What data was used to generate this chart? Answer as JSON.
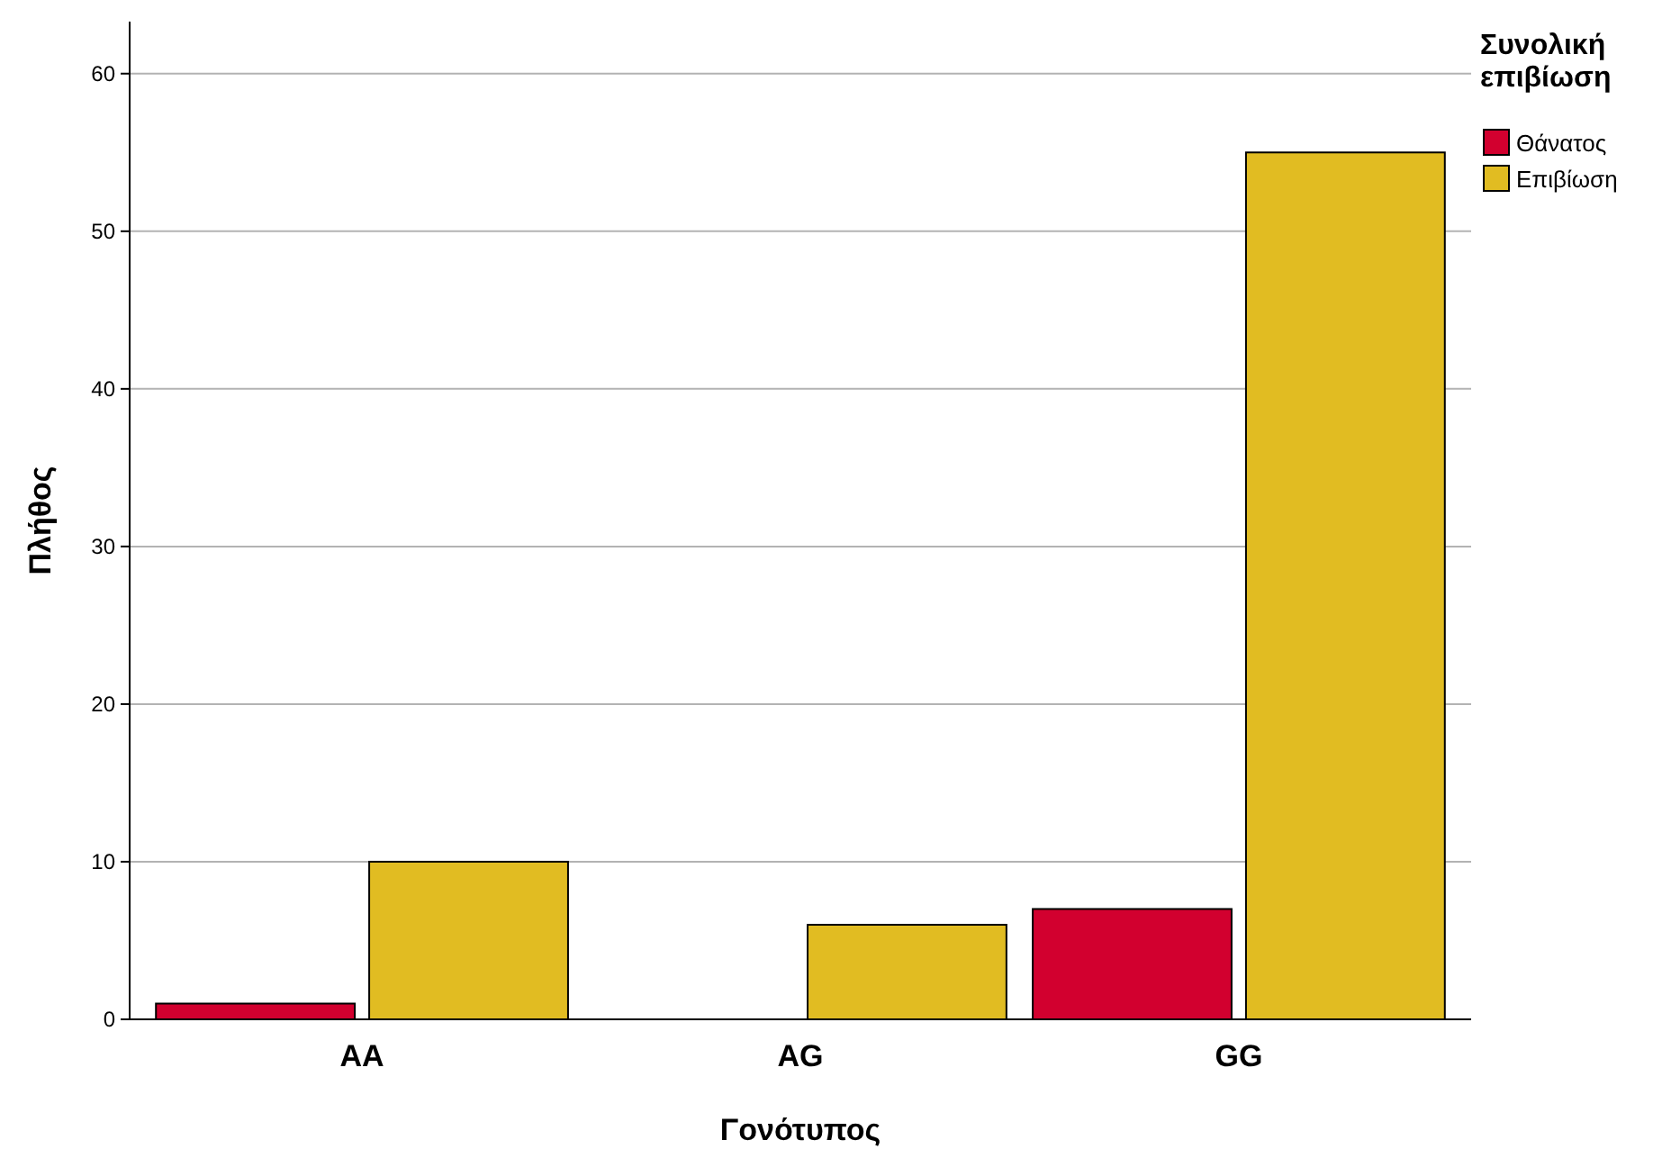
{
  "chart_data": {
    "type": "bar",
    "xlabel": "Γονότυπος",
    "ylabel": "Πλήθος",
    "legend_title": "Συνολική επιβίωση",
    "categories": [
      "AA",
      "AG",
      "GG"
    ],
    "series": [
      {
        "name": "Θάνατος",
        "color": "#d2002f",
        "values": [
          1,
          null,
          7
        ]
      },
      {
        "name": "Επιβίωση",
        "color": "#e1bc22",
        "values": [
          10,
          6,
          55
        ]
      }
    ],
    "ylim": [
      0,
      63.3
    ],
    "yticks": [
      0,
      10,
      20,
      30,
      40,
      50,
      60
    ],
    "grid": "y",
    "legend": "top right"
  }
}
